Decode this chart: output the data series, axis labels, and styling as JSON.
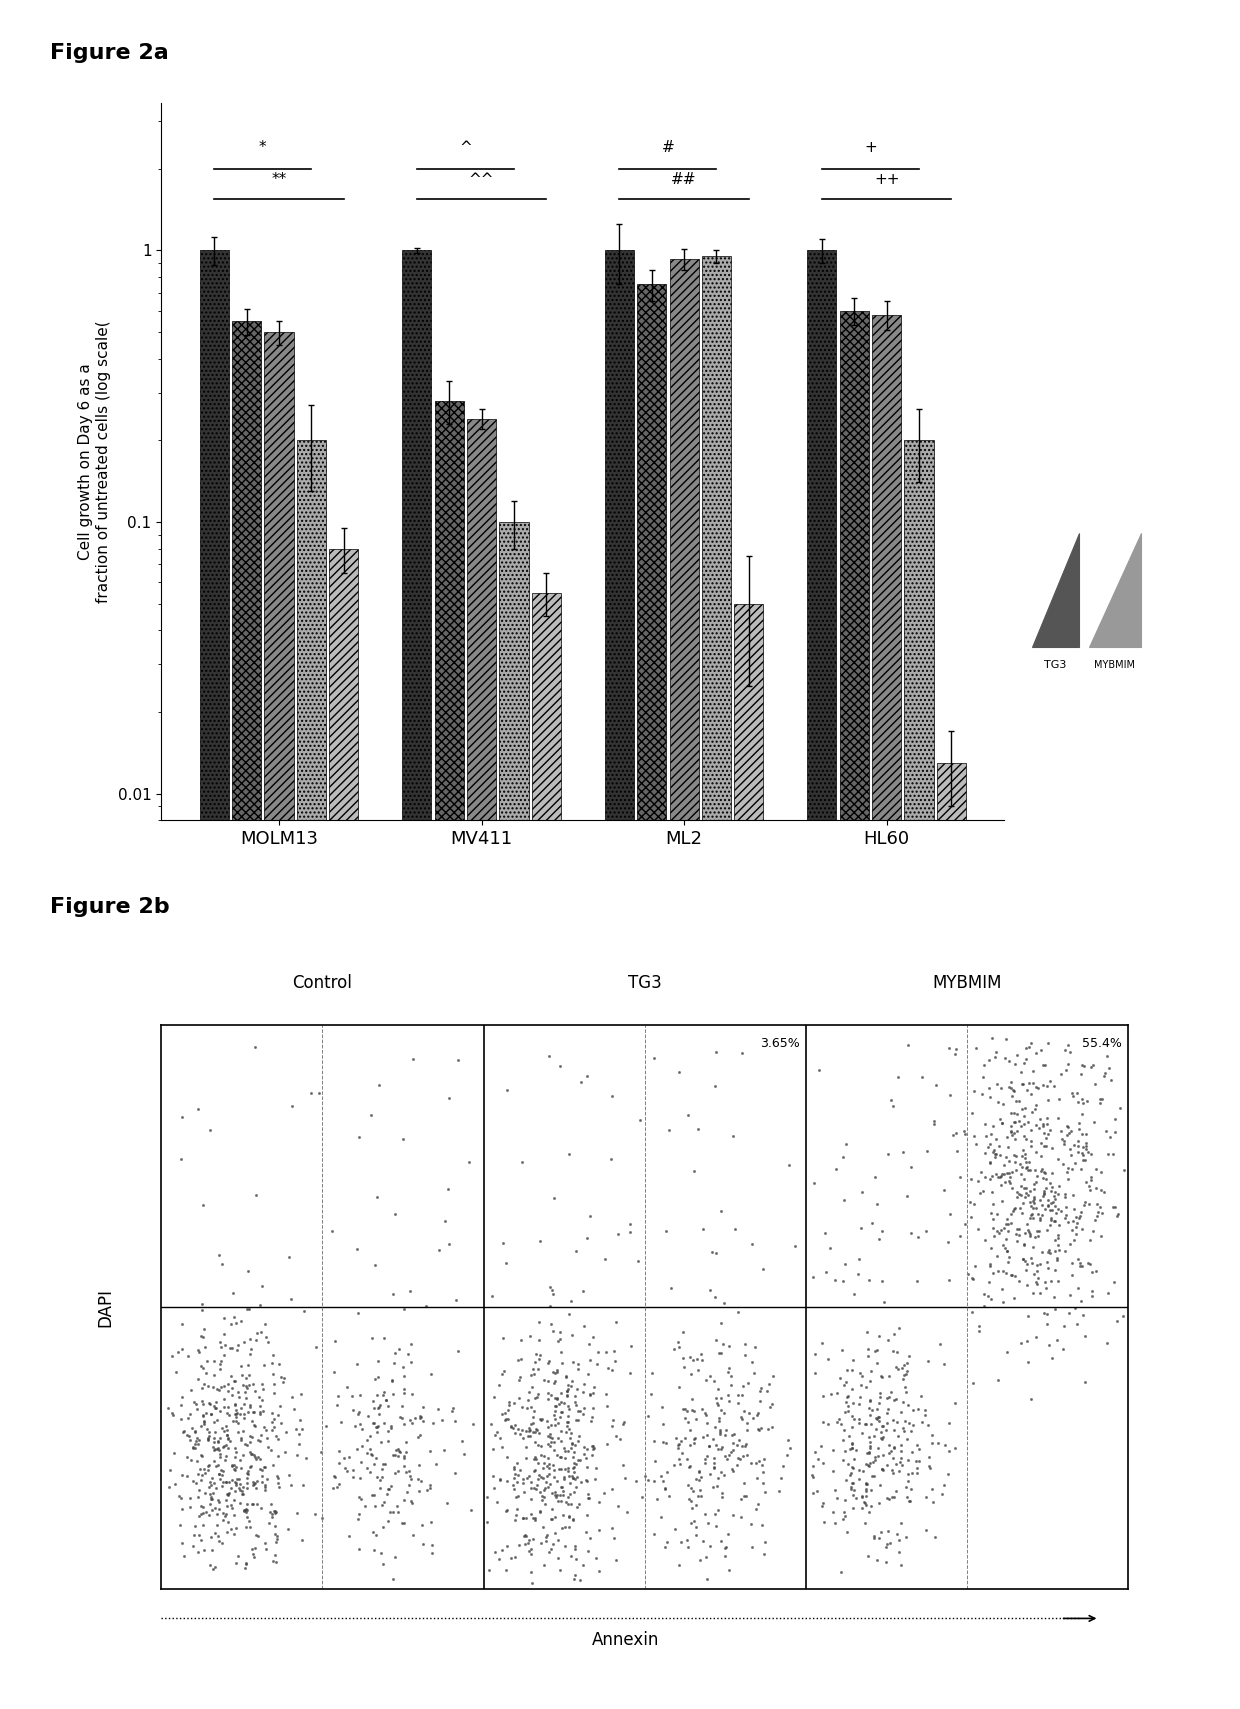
{
  "fig2a_title": "Figure 2a",
  "fig2b_title": "Figure 2b",
  "cell_lines": [
    "MOLM13",
    "MV411",
    "ML2",
    "HL60"
  ],
  "bar_data": {
    "MOLM13": {
      "values": [
        1.0,
        0.55,
        0.5,
        0.2,
        0.08
      ],
      "errors": [
        0.12,
        0.06,
        0.05,
        0.07,
        0.015
      ]
    },
    "MV411": {
      "values": [
        1.0,
        0.28,
        0.24,
        0.1,
        0.055
      ],
      "errors": [
        0.02,
        0.05,
        0.02,
        0.02,
        0.01
      ]
    },
    "ML2": {
      "values": [
        1.0,
        0.75,
        0.93,
        0.95,
        0.05
      ],
      "errors": [
        0.25,
        0.1,
        0.08,
        0.05,
        0.025
      ]
    },
    "HL60": {
      "values": [
        1.0,
        0.6,
        0.58,
        0.2,
        0.013
      ],
      "errors": [
        0.1,
        0.07,
        0.07,
        0.06,
        0.004
      ]
    }
  },
  "bar_styles": [
    {
      "color": "#333333",
      "hatch": "...."
    },
    {
      "color": "#666666",
      "hatch": "xxxx"
    },
    {
      "color": "#888888",
      "hatch": "////"
    },
    {
      "color": "#aaaaaa",
      "hatch": "...."
    },
    {
      "color": "#bbbbbb",
      "hatch": "////"
    }
  ],
  "ylim_log": [
    0.008,
    3.5
  ],
  "ylabel": "Cell growth on Day 6 as a\nfraction of untreated cells (log scale(",
  "sig_info": [
    {
      "s1": "*",
      "s2": "**",
      "gi": 0
    },
    {
      "s1": "^",
      "s2": "^^",
      "gi": 1
    },
    {
      "s1": "#",
      "s2": "##",
      "gi": 2
    },
    {
      "s1": "+",
      "s2": "++",
      "gi": 3
    }
  ],
  "legend_labels": [
    "TG3",
    "MYBMIM"
  ],
  "flow_percentages": {
    "tg3": "3.65%",
    "mybmim": "55.4%"
  },
  "flow_xlabel": "Annexin",
  "flow_ylabel": "DAPI",
  "bg_color": "#ffffff"
}
